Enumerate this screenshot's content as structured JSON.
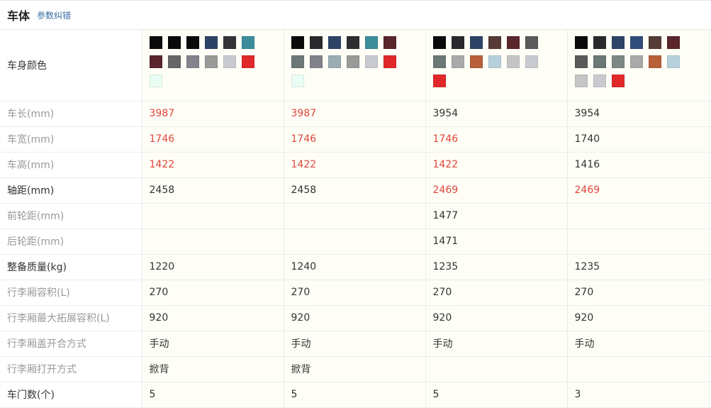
{
  "header": {
    "title": "车体",
    "link": "参数纠错"
  },
  "color_row": {
    "label": "车身颜色",
    "columns": [
      [
        "#0a0a0a",
        "#0a0a0a",
        "#0a0a0a",
        "#2e4466",
        "#333338",
        "#3c8c9a",
        "#5a252b",
        "#666666",
        "#83838e",
        "#9a9a98",
        "#c9cacf",
        "#e0282a",
        "#eafdf5"
      ],
      [
        "#0a0a0a",
        "#2a2a2c",
        "#2e4466",
        "#2e2e30",
        "#3c8c9a",
        "#5a252b",
        "#6c7875",
        "#82828a",
        "#9aacb4",
        "#9a9a98",
        "#c9cacf",
        "#e0282a",
        "#eafdf5"
      ],
      [
        "#0a0a0a",
        "#2a2a2c",
        "#2e4466",
        "#553a36",
        "#5a252b",
        "#5a5a5a",
        "#6c7875",
        "#a9a9a9",
        "#b8603a",
        "#b6d0dc",
        "#c5c5c5",
        "#c9cacf",
        "#e0282a"
      ],
      [
        "#0a0a0a",
        "#2a2a2c",
        "#2e4466",
        "#324c7a",
        "#553a36",
        "#5a252b",
        "#5a5a5a",
        "#6c7875",
        "#7d8784",
        "#a9a9a9",
        "#b8603a",
        "#b6d0dc",
        "#c5c5c5",
        "#c9cacf",
        "#e0282a"
      ]
    ]
  },
  "rows": [
    {
      "label": "车长(mm)",
      "strong": false,
      "values": [
        {
          "v": "3987",
          "hl": true
        },
        {
          "v": "3987",
          "hl": true
        },
        {
          "v": "3954",
          "hl": false
        },
        {
          "v": "3954",
          "hl": false
        }
      ]
    },
    {
      "label": "车宽(mm)",
      "strong": false,
      "values": [
        {
          "v": "1746",
          "hl": true
        },
        {
          "v": "1746",
          "hl": true
        },
        {
          "v": "1746",
          "hl": true
        },
        {
          "v": "1740",
          "hl": false
        }
      ]
    },
    {
      "label": "车高(mm)",
      "strong": false,
      "values": [
        {
          "v": "1422",
          "hl": true
        },
        {
          "v": "1422",
          "hl": true
        },
        {
          "v": "1422",
          "hl": true
        },
        {
          "v": "1416",
          "hl": false
        }
      ]
    },
    {
      "label": "轴距(mm)",
      "strong": true,
      "values": [
        {
          "v": "2458",
          "hl": false
        },
        {
          "v": "2458",
          "hl": false
        },
        {
          "v": "2469",
          "hl": true
        },
        {
          "v": "2469",
          "hl": true
        }
      ]
    },
    {
      "label": "前轮距(mm)",
      "strong": false,
      "values": [
        {
          "v": "",
          "hl": false
        },
        {
          "v": "",
          "hl": false
        },
        {
          "v": "1477",
          "hl": false
        },
        {
          "v": "",
          "hl": false
        }
      ]
    },
    {
      "label": "后轮距(mm)",
      "strong": false,
      "values": [
        {
          "v": "",
          "hl": false
        },
        {
          "v": "",
          "hl": false
        },
        {
          "v": "1471",
          "hl": false
        },
        {
          "v": "",
          "hl": false
        }
      ]
    },
    {
      "label": "整备质量(kg)",
      "strong": true,
      "values": [
        {
          "v": "1220",
          "hl": false
        },
        {
          "v": "1240",
          "hl": false
        },
        {
          "v": "1235",
          "hl": false
        },
        {
          "v": "1235",
          "hl": false
        }
      ]
    },
    {
      "label": "行李厢容积(L)",
      "strong": false,
      "values": [
        {
          "v": "270",
          "hl": false
        },
        {
          "v": "270",
          "hl": false
        },
        {
          "v": "270",
          "hl": false
        },
        {
          "v": "270",
          "hl": false
        }
      ]
    },
    {
      "label": "行李厢最大拓展容积(L)",
      "strong": false,
      "values": [
        {
          "v": "920",
          "hl": false
        },
        {
          "v": "920",
          "hl": false
        },
        {
          "v": "920",
          "hl": false
        },
        {
          "v": "920",
          "hl": false
        }
      ]
    },
    {
      "label": "行李厢盖开合方式",
      "strong": false,
      "values": [
        {
          "v": "手动",
          "hl": false
        },
        {
          "v": "手动",
          "hl": false
        },
        {
          "v": "手动",
          "hl": false
        },
        {
          "v": "手动",
          "hl": false
        }
      ]
    },
    {
      "label": "行李厢打开方式",
      "strong": false,
      "values": [
        {
          "v": "掀背",
          "hl": false
        },
        {
          "v": "掀背",
          "hl": false
        },
        {
          "v": "",
          "hl": false
        },
        {
          "v": "",
          "hl": false
        }
      ]
    },
    {
      "label": "车门数(个)",
      "strong": true,
      "values": [
        {
          "v": "5",
          "hl": false
        },
        {
          "v": "5",
          "hl": false
        },
        {
          "v": "5",
          "hl": false
        },
        {
          "v": "3",
          "hl": false
        }
      ]
    }
  ]
}
